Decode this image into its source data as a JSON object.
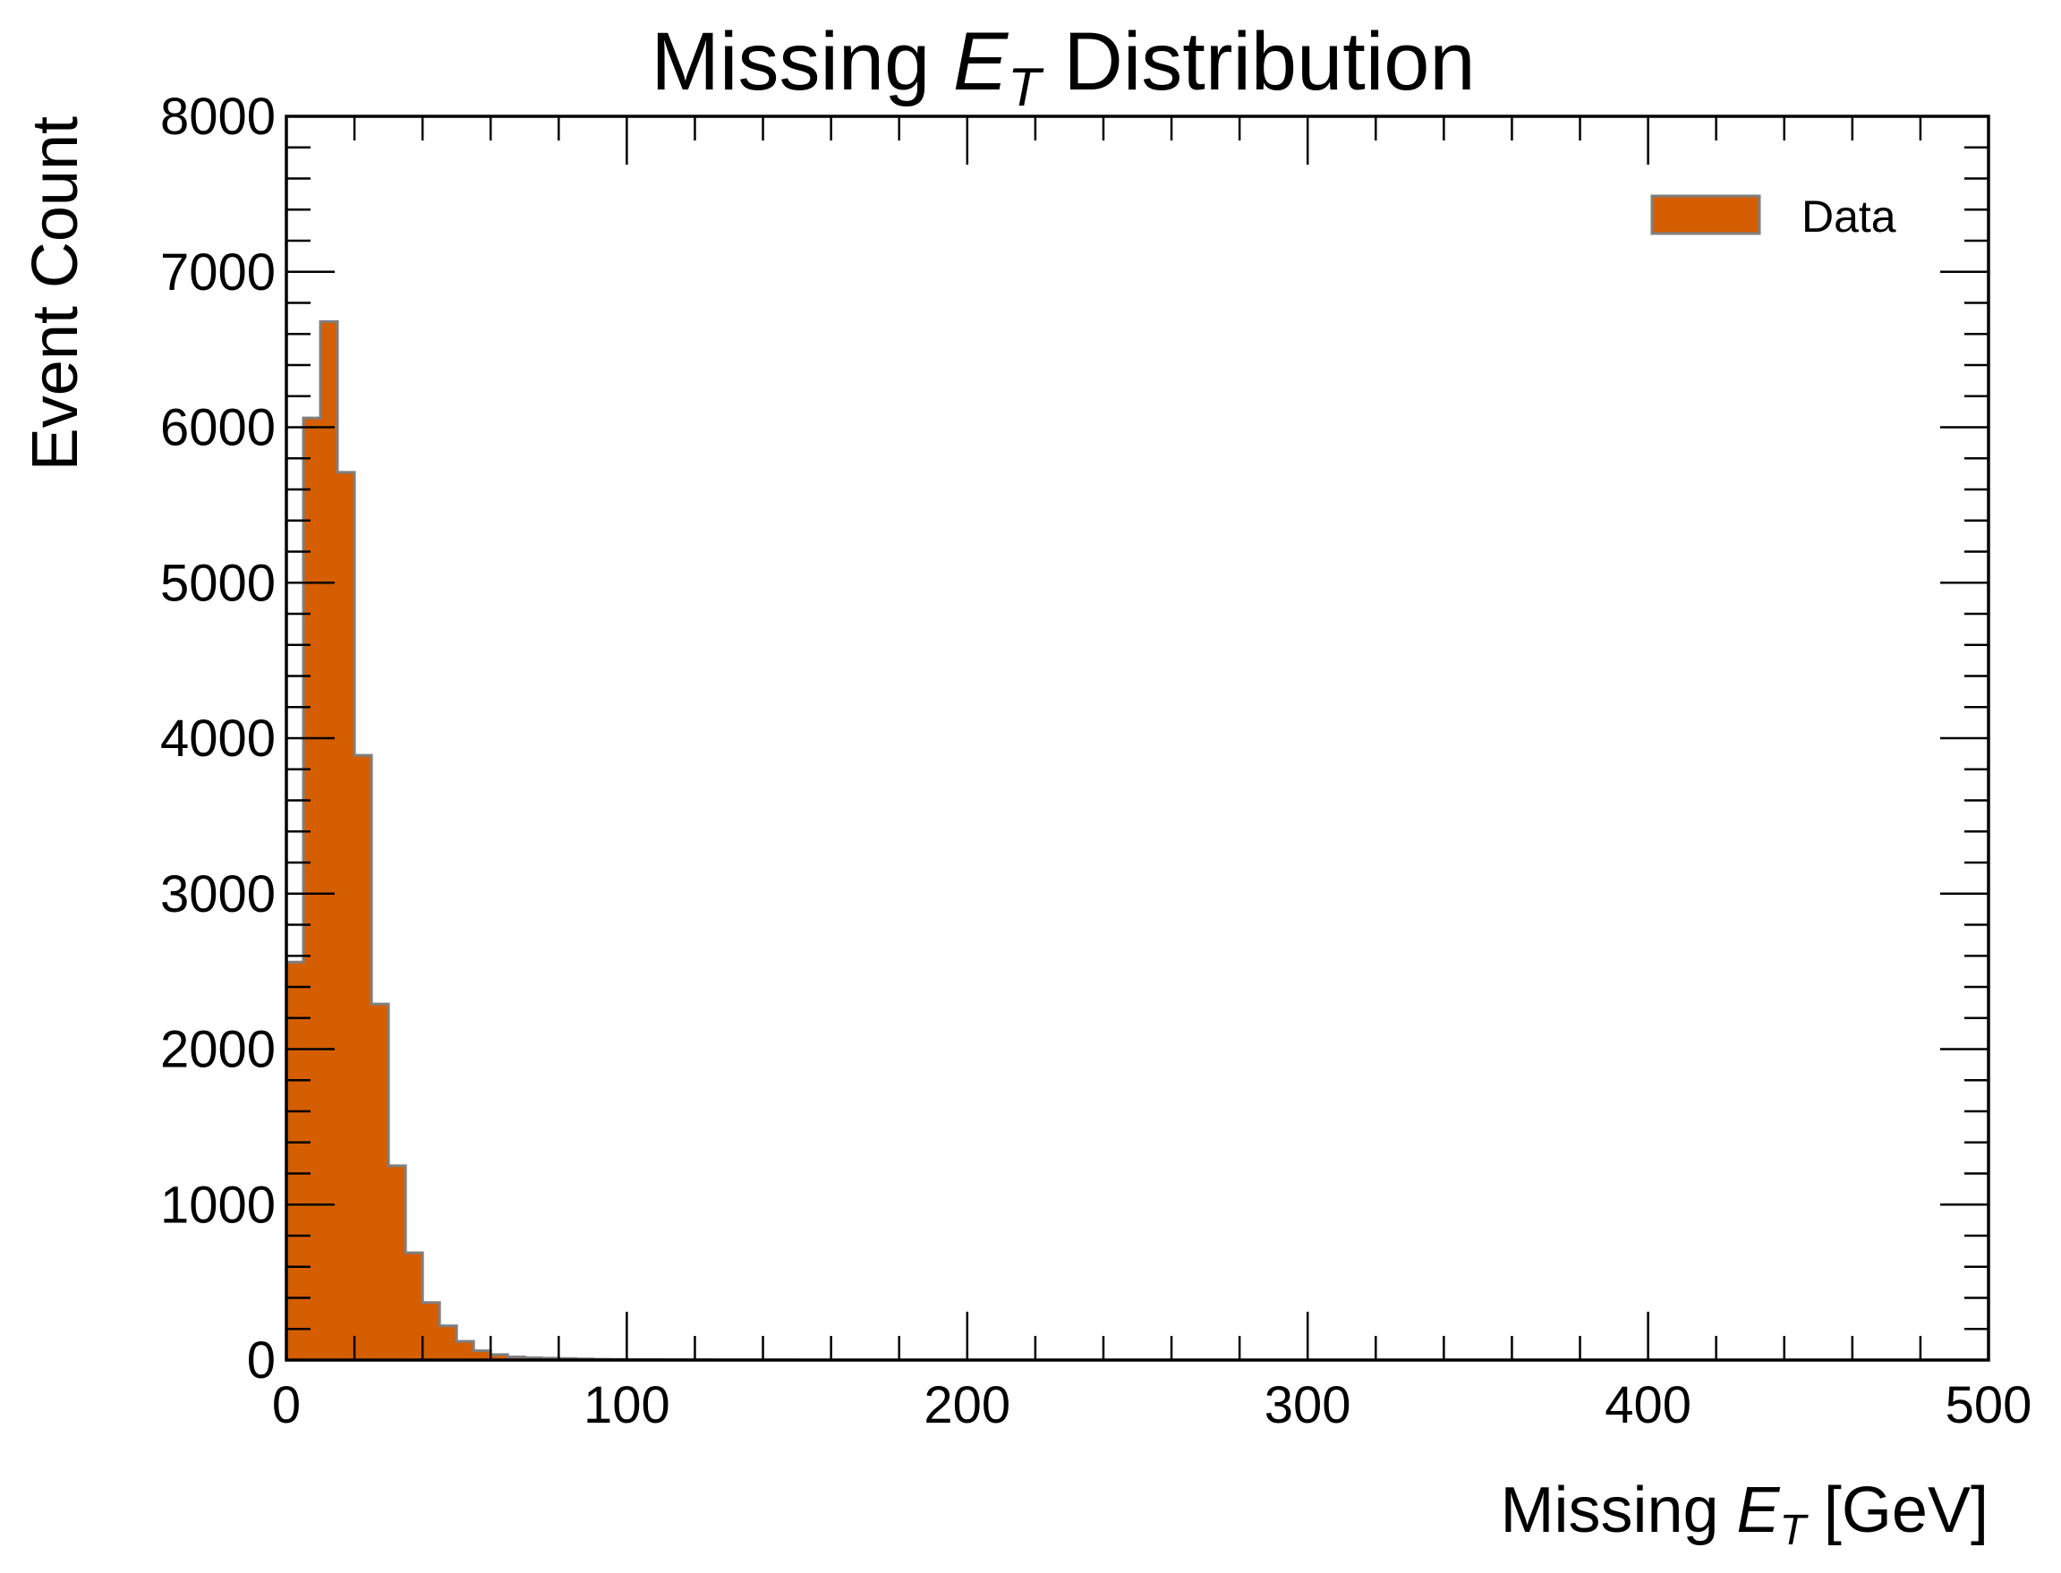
{
  "chart_data": {
    "type": "bar",
    "title": "Missing E_T Distribution",
    "title_parts": {
      "pre": "Missing ",
      "sym": "E",
      "sub": "T",
      "post": " Distribution"
    },
    "xlabel": "Missing E_T [GeV]",
    "xlabel_parts": {
      "pre": "Missing ",
      "sym": "E",
      "sub": "T",
      "post": " [GeV]"
    },
    "ylabel": "Event Count",
    "xlim": [
      0,
      500
    ],
    "ylim": [
      0,
      8000
    ],
    "x_ticks": [
      "0",
      "100",
      "200",
      "300",
      "400",
      "500"
    ],
    "y_ticks": [
      "0",
      "1000",
      "2000",
      "3000",
      "4000",
      "5000",
      "6000",
      "7000",
      "8000"
    ],
    "grid": false,
    "legend": {
      "position": "top-right",
      "entries": [
        "Data"
      ]
    },
    "bin_width": 5,
    "series": [
      {
        "name": "Data",
        "color": "#d55e00",
        "edge_color": "#7f7f7f",
        "bin_edges_start": 0,
        "values": [
          2560,
          6060,
          6680,
          5710,
          3890,
          2290,
          1250,
          690,
          370,
          220,
          120,
          60,
          35,
          20,
          15,
          12,
          10,
          7,
          5,
          4,
          3,
          3,
          2,
          2,
          2,
          1,
          1,
          1,
          1,
          1
        ]
      }
    ]
  }
}
